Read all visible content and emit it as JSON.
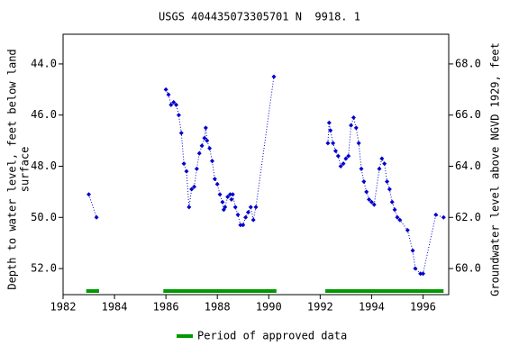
{
  "chart_data": {
    "type": "line",
    "title": "USGS 404435073305701 N  9918. 1",
    "y_label": [
      "Depth to water level, feet below land",
      "surface"
    ],
    "y2_label": "Groundwater level above NGVD 1929, feet",
    "x": [
      1983.0,
      1983.3,
      null,
      1986.0,
      1986.1,
      1986.2,
      1986.3,
      1986.4,
      1986.5,
      1986.6,
      1986.7,
      1986.8,
      1986.9,
      1987.0,
      1987.1,
      1987.2,
      1987.3,
      1987.4,
      1987.5,
      1987.55,
      1987.6,
      1987.7,
      1987.8,
      1987.9,
      1988.0,
      1988.1,
      1988.2,
      1988.25,
      1988.3,
      1988.4,
      1988.5,
      1988.55,
      1988.6,
      1988.7,
      1988.8,
      1988.9,
      1989.0,
      1989.1,
      1989.2,
      1989.3,
      1989.4,
      1989.5,
      1990.2,
      null,
      1992.3,
      1992.35,
      1992.4,
      1992.5,
      1992.6,
      1992.7,
      1992.8,
      1992.9,
      1993.0,
      1993.1,
      1993.2,
      1993.3,
      1993.4,
      1993.5,
      1993.6,
      1993.7,
      1993.8,
      1993.9,
      1994.0,
      1994.1,
      1994.3,
      1994.4,
      1994.5,
      1994.6,
      1994.7,
      1994.8,
      1994.9,
      1995.0,
      1995.1,
      1995.4,
      1995.6,
      1995.7,
      1995.9,
      1996.0,
      1996.5,
      1996.8
    ],
    "series": [
      {
        "name": "Depth to water level",
        "color": "#0000cc",
        "values": [
          49.1,
          50.0,
          null,
          45.0,
          45.2,
          45.6,
          45.5,
          45.6,
          46.0,
          46.7,
          47.9,
          48.2,
          49.6,
          48.9,
          48.8,
          48.1,
          47.5,
          47.2,
          46.9,
          46.5,
          47.0,
          47.3,
          47.8,
          48.5,
          48.7,
          49.1,
          49.4,
          49.7,
          49.6,
          49.2,
          49.1,
          49.3,
          49.1,
          49.6,
          49.9,
          50.3,
          50.3,
          50.0,
          49.8,
          49.6,
          50.1,
          49.6,
          44.5,
          null,
          47.1,
          46.3,
          46.6,
          47.1,
          47.4,
          47.6,
          48.0,
          47.9,
          47.7,
          47.6,
          46.4,
          46.1,
          46.5,
          47.1,
          48.1,
          48.6,
          49.0,
          49.3,
          49.4,
          49.5,
          48.1,
          47.7,
          47.9,
          48.6,
          48.9,
          49.4,
          49.7,
          50.0,
          50.1,
          50.5,
          51.3,
          52.0,
          52.2,
          52.2,
          49.9,
          50.0
        ]
      }
    ],
    "approved_periods": [
      [
        1982.9,
        1983.4
      ],
      [
        1985.9,
        1990.3
      ],
      [
        1992.2,
        1996.8
      ]
    ],
    "approved_color": "#009900",
    "legend_label": "Period of approved data",
    "xlim": [
      1982,
      1997
    ],
    "xticks": [
      1982,
      1984,
      1986,
      1988,
      1990,
      1992,
      1994,
      1996
    ],
    "ylim": [
      42.84,
      53.02
    ],
    "yticks": [
      {
        "value": 44,
        "label": "44.0"
      },
      {
        "value": 46,
        "label": "46.0"
      },
      {
        "value": 48,
        "label": "48.0"
      },
      {
        "value": 50,
        "label": "50.0"
      },
      {
        "value": 52,
        "label": "52.0"
      }
    ],
    "y2lim": [
      69.16,
      58.98
    ],
    "y2ticks": [
      {
        "value": 60,
        "label": "60.0"
      },
      {
        "value": 62,
        "label": "62.0"
      },
      {
        "value": 64,
        "label": "64.0"
      },
      {
        "value": 66,
        "label": "66.0"
      },
      {
        "value": 68,
        "label": "68.0"
      }
    ]
  }
}
